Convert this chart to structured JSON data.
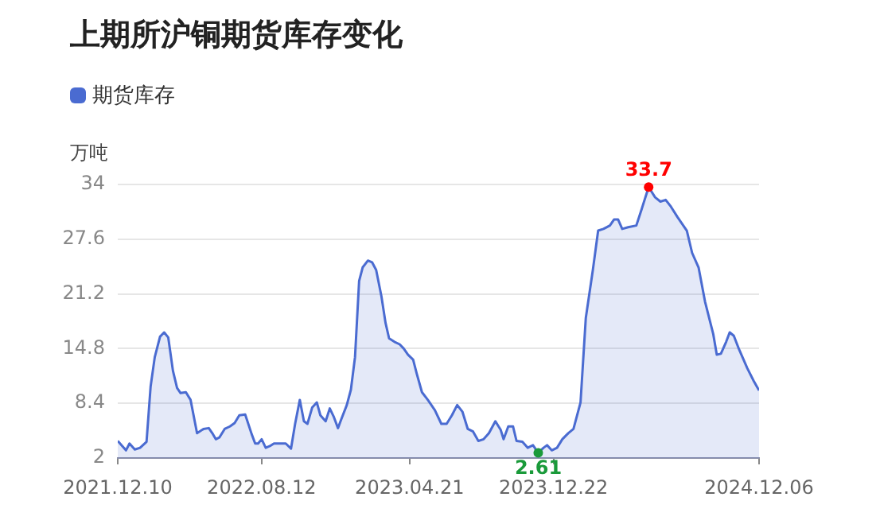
{
  "chart_data": {
    "type": "area",
    "title": "上期所沪铜期货库存变化",
    "ylabel": "万吨",
    "legend": "top left",
    "grid": "y",
    "xlim": [
      "2021-12-10",
      "2024-12-06"
    ],
    "xticks": [
      {
        "value": "2021-12-10",
        "label": "2021.12.10"
      },
      {
        "value": "2022-08-12",
        "label": "2022.08.12"
      },
      {
        "value": "2023-04-21",
        "label": "2023.04.21"
      },
      {
        "value": "2023-12-22",
        "label": "2023.12.22"
      },
      {
        "value": "2024-12-06",
        "label": "2024.12.06"
      }
    ],
    "ylim": [
      2,
      34
    ],
    "yticks": [
      2,
      8.4,
      14.8,
      21.2,
      27.6,
      34
    ],
    "annotations": [
      {
        "text": "33.7",
        "x": "2024-06-01",
        "y": 33.7
      },
      {
        "text": "2.61",
        "x": "2023-11-26",
        "y": 2.61
      }
    ],
    "series": [
      {
        "name": "期货库存",
        "color": "#4a6bd1",
        "x": [
          "2021-12-10",
          "2021-12-24",
          "2021-12-30",
          "2022-01-08",
          "2022-01-17",
          "2022-01-28",
          "2022-02-04",
          "2022-02-11",
          "2022-02-20",
          "2022-02-27",
          "2022-03-06",
          "2022-03-14",
          "2022-03-21",
          "2022-03-27",
          "2022-04-05",
          "2022-04-13",
          "2022-04-24",
          "2022-05-05",
          "2022-05-14",
          "2022-05-21",
          "2022-05-26",
          "2022-06-01",
          "2022-06-10",
          "2022-06-19",
          "2022-06-27",
          "2022-07-05",
          "2022-07-15",
          "2022-07-26",
          "2022-08-01",
          "2022-08-06",
          "2022-08-12",
          "2022-08-19",
          "2022-08-26",
          "2022-09-02",
          "2022-09-13",
          "2022-09-22",
          "2022-10-01",
          "2022-10-08",
          "2022-10-16",
          "2022-10-23",
          "2022-10-29",
          "2022-11-06",
          "2022-11-14",
          "2022-11-20",
          "2022-11-29",
          "2022-12-06",
          "2022-12-13",
          "2022-12-20",
          "2022-12-26",
          "2023-01-04",
          "2023-01-11",
          "2023-01-18",
          "2023-01-25",
          "2023-01-31",
          "2023-02-09",
          "2023-02-16",
          "2023-02-23",
          "2023-03-04",
          "2023-03-11",
          "2023-03-17",
          "2023-03-26",
          "2023-04-04",
          "2023-04-11",
          "2023-04-18",
          "2023-04-27",
          "2023-05-03",
          "2023-05-12",
          "2023-05-22",
          "2023-06-03",
          "2023-06-14",
          "2023-06-23",
          "2023-07-02",
          "2023-07-11",
          "2023-07-20",
          "2023-07-29",
          "2023-08-07",
          "2023-08-16",
          "2023-08-25",
          "2023-09-03",
          "2023-09-14",
          "2023-09-23",
          "2023-09-28",
          "2023-10-06",
          "2023-10-14",
          "2023-10-20",
          "2023-10-30",
          "2023-11-08",
          "2023-11-17",
          "2023-11-26",
          "2023-12-05",
          "2023-12-11",
          "2023-12-19",
          "2023-12-28",
          "2024-01-06",
          "2024-01-16",
          "2024-01-25",
          "2024-02-06",
          "2024-02-15",
          "2024-02-27",
          "2024-03-07",
          "2024-03-16",
          "2024-03-27",
          "2024-04-03",
          "2024-04-10",
          "2024-04-17",
          "2024-04-27",
          "2024-05-11",
          "2024-05-20",
          "2024-06-01",
          "2024-06-12",
          "2024-06-21",
          "2024-06-30",
          "2024-07-09",
          "2024-07-20",
          "2024-08-05",
          "2024-08-14",
          "2024-08-25",
          "2024-09-05",
          "2024-09-19",
          "2024-09-25",
          "2024-10-02",
          "2024-10-11",
          "2024-10-17",
          "2024-10-24",
          "2024-11-02",
          "2024-11-16",
          "2024-11-27",
          "2024-12-06"
        ],
        "values": [
          4.0,
          2.9,
          3.7,
          3.0,
          3.2,
          3.9,
          10.4,
          13.8,
          16.2,
          16.7,
          16.1,
          12.2,
          10.2,
          9.6,
          9.7,
          8.8,
          4.9,
          5.4,
          5.5,
          4.8,
          4.2,
          4.4,
          5.4,
          5.7,
          6.1,
          7.0,
          7.1,
          4.8,
          3.7,
          3.7,
          4.2,
          3.2,
          3.4,
          3.7,
          3.7,
          3.7,
          3.1,
          6.0,
          8.8,
          6.3,
          6.0,
          7.9,
          8.5,
          7.0,
          6.3,
          7.8,
          6.8,
          5.5,
          6.6,
          8.2,
          10.0,
          13.8,
          22.7,
          24.3,
          25.1,
          24.9,
          24.0,
          20.9,
          17.8,
          16.0,
          15.6,
          15.3,
          14.8,
          14.1,
          13.5,
          11.9,
          9.7,
          8.8,
          7.6,
          6.0,
          6.0,
          7.0,
          8.2,
          7.4,
          5.4,
          5.1,
          4.0,
          4.2,
          4.9,
          6.3,
          5.3,
          4.2,
          5.7,
          5.7,
          4.0,
          3.9,
          3.2,
          3.5,
          2.61,
          3.2,
          3.5,
          2.9,
          3.2,
          4.2,
          4.9,
          5.4,
          8.5,
          18.4,
          24.0,
          28.6,
          28.8,
          29.2,
          29.9,
          29.9,
          28.8,
          29.0,
          29.2,
          31.1,
          33.7,
          32.5,
          32.0,
          32.2,
          31.4,
          30.2,
          28.6,
          26.0,
          24.3,
          20.3,
          16.5,
          14.1,
          14.2,
          15.6,
          16.7,
          16.3,
          14.7,
          12.5,
          11.0,
          9.9
        ]
      }
    ]
  }
}
